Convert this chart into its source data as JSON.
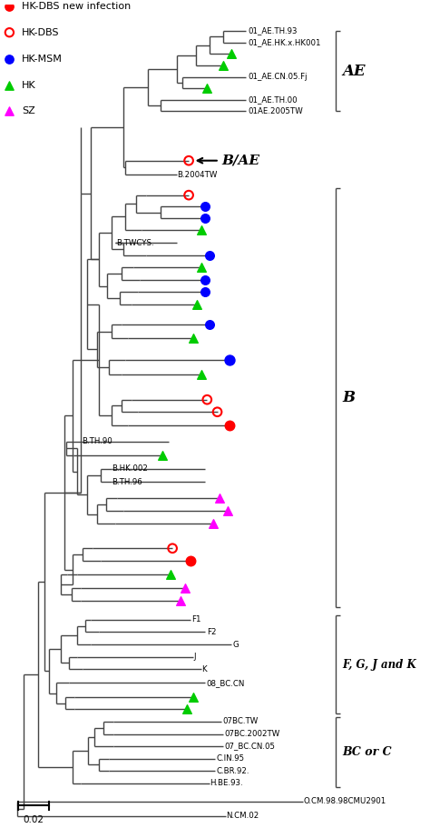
{
  "figsize": [
    4.74,
    9.11
  ],
  "dpi": 100,
  "legend_items": [
    {
      "label": "HK-DBS new infection",
      "marker": "o",
      "color": "#FF0000",
      "filled": true
    },
    {
      "label": "HK-DBS",
      "marker": "o",
      "color": "#FF0000",
      "filled": false
    },
    {
      "label": "HK-MSM",
      "marker": "o",
      "color": "#0000FF",
      "filled": true
    },
    {
      "label": "HK",
      "marker": "^",
      "color": "#00CC00",
      "filled": true
    },
    {
      "label": "SZ",
      "marker": "^",
      "color": "#FF00FF",
      "filled": true
    }
  ],
  "tree_color": "#444444",
  "tree_lw": 1.0,
  "green": "#00CC00",
  "magenta": "#FF00FF",
  "blue": "#0000FF",
  "red": "#FF0000"
}
